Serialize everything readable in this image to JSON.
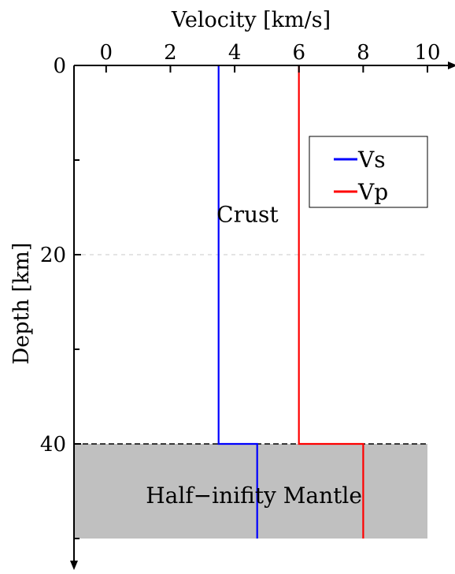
{
  "chart_data": {
    "type": "line",
    "xlabel": "Velocity [km/s]",
    "ylabel": "Depth [km]",
    "xlim": [
      -1,
      10
    ],
    "ylim": [
      0,
      50
    ],
    "x_ticks": [
      0,
      2,
      4,
      6,
      8,
      10
    ],
    "y_ticks": [
      0,
      20,
      40
    ],
    "y_minor_ticks": [
      10,
      30,
      50
    ],
    "y_axis": "inverted",
    "x_axis_position": "top",
    "grid_lines_y": [
      20
    ],
    "series": [
      {
        "name": "Vs",
        "color": "#0000ff",
        "points": [
          [
            3.5,
            0
          ],
          [
            3.5,
            40
          ],
          [
            4.7,
            40
          ],
          [
            4.7,
            50
          ]
        ]
      },
      {
        "name": "Vp",
        "color": "#ff0000",
        "points": [
          [
            6.0,
            0
          ],
          [
            6.0,
            40
          ],
          [
            8.0,
            40
          ],
          [
            8.0,
            50
          ]
        ]
      }
    ],
    "legend": {
      "placement": "top-right",
      "entries": [
        "Vs",
        "Vp"
      ]
    },
    "annotations": [
      {
        "text": "Crust",
        "x": 4.4,
        "y": 15.8
      },
      {
        "text": "Half−inifity Mantle",
        "x": 4.6,
        "y": 45.5
      }
    ],
    "regions": [
      {
        "label": "Half−inifity Mantle",
        "depth_from": 40,
        "depth_to": 50,
        "color": "#c0c0c0"
      }
    ],
    "boundary_depth": 40
  }
}
